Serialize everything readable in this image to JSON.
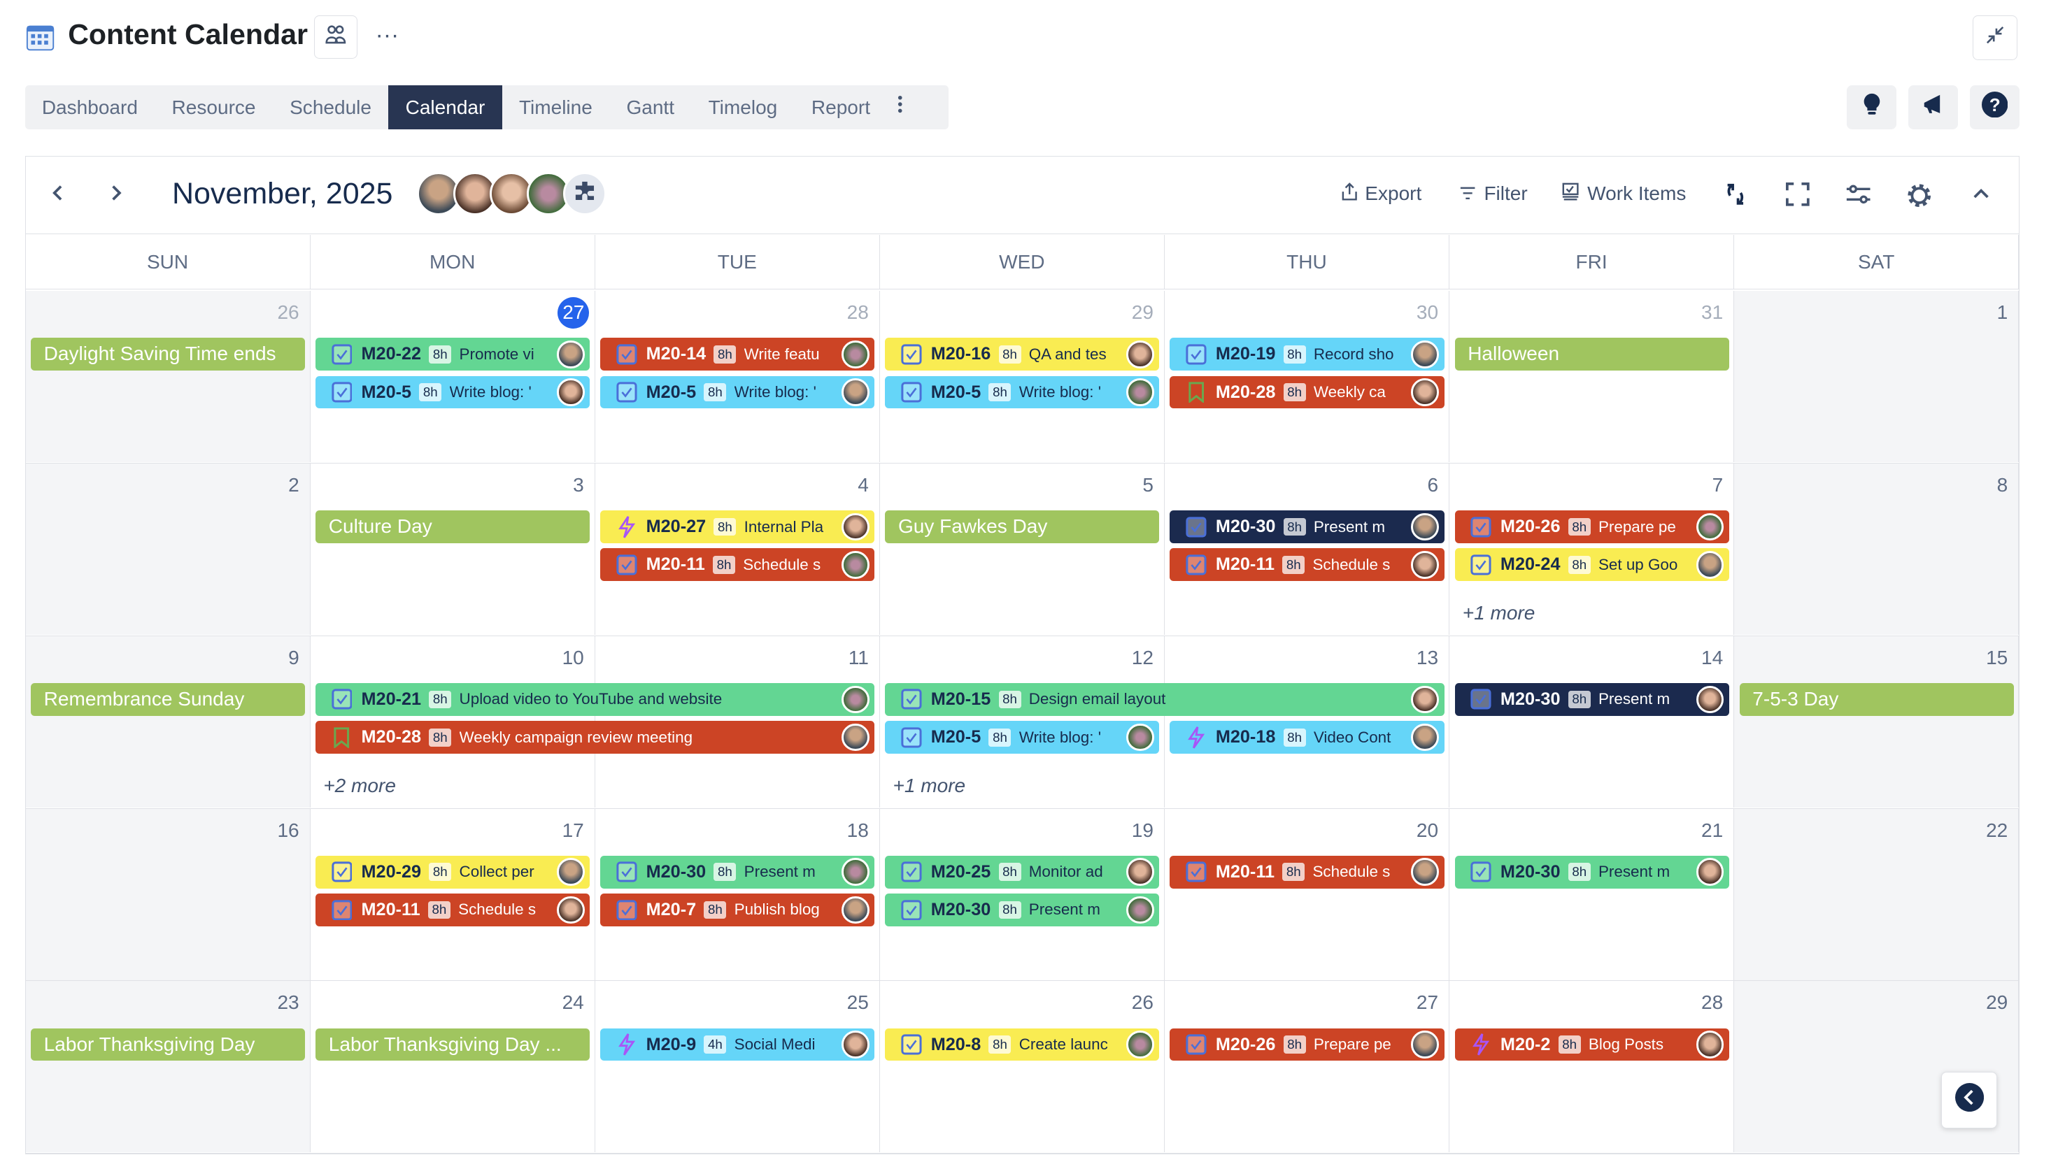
{
  "header": {
    "title": "Content Calendar",
    "more": "···"
  },
  "tabs": [
    {
      "label": "Dashboard"
    },
    {
      "label": "Resource"
    },
    {
      "label": "Schedule"
    },
    {
      "label": "Calendar",
      "active": true
    },
    {
      "label": "Timeline"
    },
    {
      "label": "Gantt"
    },
    {
      "label": "Timelog"
    },
    {
      "label": "Report"
    }
  ],
  "toolbar": {
    "month": "November, 2025",
    "export": "Export",
    "filter": "Filter",
    "work_items": "Work Items"
  },
  "days_of_week": [
    "SUN",
    "MON",
    "TUE",
    "WED",
    "THU",
    "FRI",
    "SAT"
  ],
  "colors": {
    "green": "#63d693",
    "red": "#cc4425",
    "yellow": "#f9ec52",
    "cyan": "#65d5f8",
    "navy": "#1b2a4e",
    "holiday": "#a0c55f",
    "today": "#2563eb",
    "active_tab": "#283552"
  },
  "weeks": [
    {
      "days": [
        {
          "n": "26",
          "other": true
        },
        {
          "n": "27",
          "other": true,
          "today": true
        },
        {
          "n": "28",
          "other": true
        },
        {
          "n": "29",
          "other": true
        },
        {
          "n": "30",
          "other": true
        },
        {
          "n": "31",
          "other": true
        },
        {
          "n": "1"
        }
      ],
      "holidays": [
        {
          "col": 0,
          "label": "Daylight Saving Time ends"
        },
        {
          "col": 5,
          "label": "Halloween"
        }
      ],
      "events": [
        {
          "col": 1,
          "lane": 0,
          "span": 1,
          "key": "M20-22",
          "dur": "8h",
          "title": "Promote vi",
          "color": "green",
          "icon": "checkbox"
        },
        {
          "col": 1,
          "lane": 1,
          "span": 1,
          "key": "M20-5",
          "dur": "8h",
          "title": "Write blog: '",
          "color": "cyan",
          "icon": "checkbox"
        },
        {
          "col": 2,
          "lane": 0,
          "span": 1,
          "key": "M20-14",
          "dur": "8h",
          "title": "Write featu",
          "color": "red",
          "icon": "checkbox"
        },
        {
          "col": 2,
          "lane": 1,
          "span": 1,
          "key": "M20-5",
          "dur": "8h",
          "title": "Write blog: '",
          "color": "cyan",
          "icon": "checkbox"
        },
        {
          "col": 3,
          "lane": 0,
          "span": 1,
          "key": "M20-16",
          "dur": "8h",
          "title": "QA and tes",
          "color": "yellow",
          "icon": "checkbox"
        },
        {
          "col": 3,
          "lane": 1,
          "span": 1,
          "key": "M20-5",
          "dur": "8h",
          "title": "Write blog: '",
          "color": "cyan",
          "icon": "checkbox"
        },
        {
          "col": 4,
          "lane": 0,
          "span": 1,
          "key": "M20-19",
          "dur": "8h",
          "title": "Record sho",
          "color": "cyan",
          "icon": "checkbox"
        },
        {
          "col": 4,
          "lane": 1,
          "span": 1,
          "key": "M20-28",
          "dur": "8h",
          "title": "Weekly ca",
          "color": "red",
          "icon": "bookmark"
        }
      ],
      "more": []
    },
    {
      "days": [
        {
          "n": "2"
        },
        {
          "n": "3"
        },
        {
          "n": "4"
        },
        {
          "n": "5"
        },
        {
          "n": "6"
        },
        {
          "n": "7"
        },
        {
          "n": "8"
        }
      ],
      "holidays": [
        {
          "col": 1,
          "label": "Culture Day"
        },
        {
          "col": 3,
          "label": "Guy Fawkes Day"
        }
      ],
      "events": [
        {
          "col": 2,
          "lane": 0,
          "span": 1,
          "key": "M20-27",
          "dur": "8h",
          "title": "Internal Pla",
          "color": "yellow",
          "icon": "lightning"
        },
        {
          "col": 2,
          "lane": 1,
          "span": 1,
          "key": "M20-11",
          "dur": "8h",
          "title": "Schedule s",
          "color": "red",
          "icon": "checkbox"
        },
        {
          "col": 4,
          "lane": 0,
          "span": 1,
          "key": "M20-30",
          "dur": "8h",
          "title": "Present m",
          "color": "navy",
          "icon": "checkbox"
        },
        {
          "col": 4,
          "lane": 1,
          "span": 1,
          "key": "M20-11",
          "dur": "8h",
          "title": "Schedule s",
          "color": "red",
          "icon": "checkbox"
        },
        {
          "col": 5,
          "lane": 0,
          "span": 1,
          "key": "M20-26",
          "dur": "8h",
          "title": "Prepare pe",
          "color": "red",
          "icon": "checkbox"
        },
        {
          "col": 5,
          "lane": 1,
          "span": 1,
          "key": "M20-24",
          "dur": "8h",
          "title": "Set up Goo",
          "color": "yellow",
          "icon": "checkbox"
        }
      ],
      "more": [
        {
          "col": 5,
          "label": "+1 more"
        }
      ]
    },
    {
      "days": [
        {
          "n": "9"
        },
        {
          "n": "10"
        },
        {
          "n": "11"
        },
        {
          "n": "12"
        },
        {
          "n": "13"
        },
        {
          "n": "14"
        },
        {
          "n": "15"
        }
      ],
      "holidays": [
        {
          "col": 0,
          "label": "Remembrance Sunday"
        },
        {
          "col": 6,
          "label": "7-5-3 Day"
        }
      ],
      "events": [
        {
          "col": 1,
          "lane": 0,
          "span": 2,
          "key": "M20-21",
          "dur": "8h",
          "title": "Upload video to YouTube and website",
          "color": "green",
          "icon": "checkbox"
        },
        {
          "col": 1,
          "lane": 1,
          "span": 2,
          "key": "M20-28",
          "dur": "8h",
          "title": "Weekly campaign review meeting",
          "color": "red",
          "icon": "bookmark"
        },
        {
          "col": 3,
          "lane": 0,
          "span": 2,
          "key": "M20-15",
          "dur": "8h",
          "title": "Design email layout",
          "color": "green",
          "icon": "checkbox"
        },
        {
          "col": 3,
          "lane": 1,
          "span": 1,
          "key": "M20-5",
          "dur": "8h",
          "title": "Write blog: '",
          "color": "cyan",
          "icon": "checkbox"
        },
        {
          "col": 4,
          "lane": 1,
          "span": 1,
          "key": "M20-18",
          "dur": "8h",
          "title": "Video Cont",
          "color": "cyan",
          "icon": "lightning"
        },
        {
          "col": 5,
          "lane": 0,
          "span": 1,
          "key": "M20-30",
          "dur": "8h",
          "title": "Present m",
          "color": "navy",
          "icon": "checkbox"
        }
      ],
      "more": [
        {
          "col": 1,
          "label": "+2 more"
        },
        {
          "col": 3,
          "label": "+1 more"
        }
      ]
    },
    {
      "days": [
        {
          "n": "16"
        },
        {
          "n": "17"
        },
        {
          "n": "18"
        },
        {
          "n": "19"
        },
        {
          "n": "20"
        },
        {
          "n": "21"
        },
        {
          "n": "22"
        }
      ],
      "holidays": [],
      "events": [
        {
          "col": 1,
          "lane": 0,
          "span": 1,
          "key": "M20-29",
          "dur": "8h",
          "title": "Collect per",
          "color": "yellow",
          "icon": "checkbox"
        },
        {
          "col": 1,
          "lane": 1,
          "span": 1,
          "key": "M20-11",
          "dur": "8h",
          "title": "Schedule s",
          "color": "red",
          "icon": "checkbox"
        },
        {
          "col": 2,
          "lane": 0,
          "span": 1,
          "key": "M20-30",
          "dur": "8h",
          "title": "Present m",
          "color": "green",
          "icon": "checkbox"
        },
        {
          "col": 2,
          "lane": 1,
          "span": 1,
          "key": "M20-7",
          "dur": "8h",
          "title": "Publish blog",
          "color": "red",
          "icon": "checkbox"
        },
        {
          "col": 3,
          "lane": 0,
          "span": 1,
          "key": "M20-25",
          "dur": "8h",
          "title": "Monitor ad",
          "color": "green",
          "icon": "checkbox"
        },
        {
          "col": 3,
          "lane": 1,
          "span": 1,
          "key": "M20-30",
          "dur": "8h",
          "title": "Present m",
          "color": "green",
          "icon": "checkbox"
        },
        {
          "col": 4,
          "lane": 0,
          "span": 1,
          "key": "M20-11",
          "dur": "8h",
          "title": "Schedule s",
          "color": "red",
          "icon": "checkbox"
        },
        {
          "col": 5,
          "lane": 0,
          "span": 1,
          "key": "M20-30",
          "dur": "8h",
          "title": "Present m",
          "color": "green",
          "icon": "checkbox"
        }
      ],
      "more": []
    },
    {
      "days": [
        {
          "n": "23"
        },
        {
          "n": "24"
        },
        {
          "n": "25"
        },
        {
          "n": "26"
        },
        {
          "n": "27"
        },
        {
          "n": "28"
        },
        {
          "n": "29"
        }
      ],
      "holidays": [
        {
          "col": 0,
          "label": "Labor Thanksgiving Day"
        },
        {
          "col": 1,
          "label": "Labor Thanksgiving Day ..."
        }
      ],
      "events": [
        {
          "col": 2,
          "lane": 0,
          "span": 1,
          "key": "M20-9",
          "dur": "4h",
          "title": "Social Medi",
          "color": "cyan",
          "icon": "lightning"
        },
        {
          "col": 3,
          "lane": 0,
          "span": 1,
          "key": "M20-8",
          "dur": "8h",
          "title": "Create launc",
          "color": "yellow",
          "icon": "checkbox"
        },
        {
          "col": 4,
          "lane": 0,
          "span": 1,
          "key": "M20-26",
          "dur": "8h",
          "title": "Prepare pe",
          "color": "red",
          "icon": "checkbox"
        },
        {
          "col": 5,
          "lane": 0,
          "span": 1,
          "key": "M20-2",
          "dur": "8h",
          "title": "Blog Posts",
          "color": "red",
          "icon": "lightning"
        }
      ],
      "more": []
    }
  ]
}
